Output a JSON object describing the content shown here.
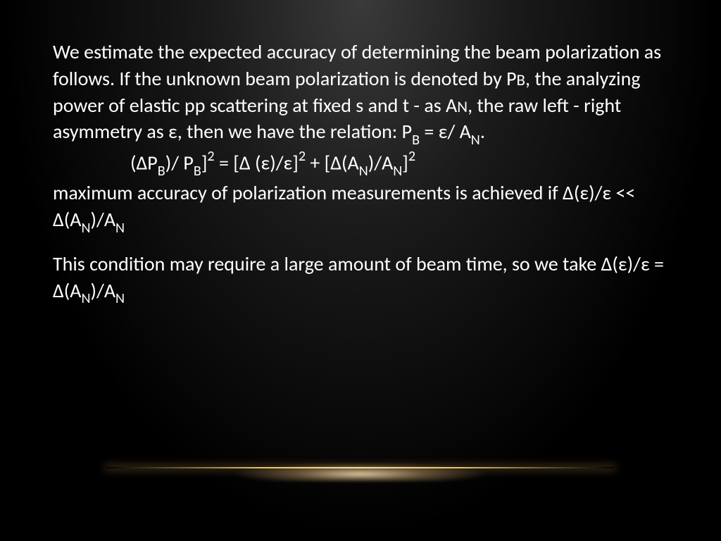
{
  "slide": {
    "background": {
      "gradient_center": "#3a3a3a",
      "gradient_mid": "#1a1a1a",
      "gradient_edge": "#000000"
    },
    "text_color": "#ffffff",
    "font_family": "Calibri",
    "body_fontsize_pt": 28,
    "line_height": 1.35,
    "paragraphs": {
      "p1_part1": "We estimate the expected accuracy of determining the beam polarization as follows. If the unknown beam polarization is denoted by P",
      "p1_sub1": "B",
      "p1_part2": ", the analyzing power of elastic pp scattering at fixed s and t - as A",
      "p1_sub2": "N",
      "p1_part3": ", the raw left - right asymmetry as ε, then we have the relation:  P",
      "p1_sub3": "B",
      "p1_part4": " = ε/ A",
      "p1_sub4": "N",
      "p1_part5": ".",
      "eq_part1": "(ΔP",
      "eq_sub1": "B",
      "eq_part2": ")/ P",
      "eq_sub2": "B",
      "eq_part3": "]",
      "eq_sup1": "2",
      "eq_part4": "  =  [Δ (ε)/ε]",
      "eq_sup2": "2",
      "eq_part5": " + [Δ(A",
      "eq_sub3": "N",
      "eq_part6": ")/A",
      "eq_sub4": "N",
      "eq_part7": "]",
      "eq_sup3": "2",
      "p2_part1": "maximum accuracy of polarization measurements is achieved  if     Δ(ε)/ε << Δ(A",
      "p2_sub1": "N",
      "p2_part2": ")/A",
      "p2_sub2": "N",
      "p3_part1": "This condition may require a large amount of beam time, so we take Δ(ε)/ε = Δ(A",
      "p3_sub1": "N",
      "p3_part2": ")/A",
      "p3_sub2": "N"
    },
    "glow": {
      "line_color": "#ffd278",
      "halo_color": "#ffebbe"
    }
  }
}
